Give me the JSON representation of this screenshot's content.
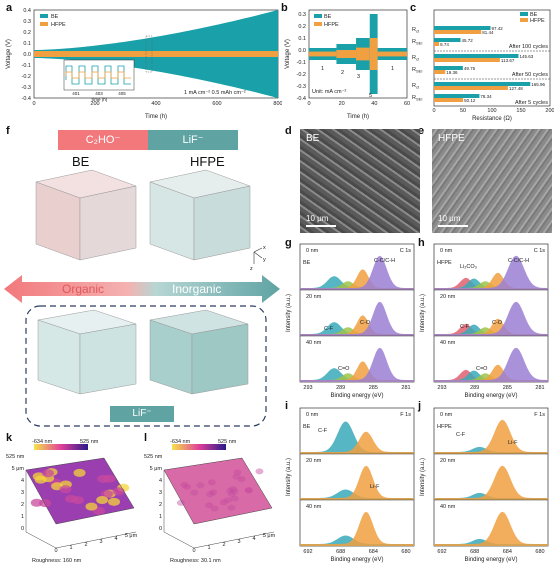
{
  "panel_labels": {
    "a": "a",
    "b": "b",
    "c": "c",
    "d": "d",
    "e": "e",
    "f": "f",
    "g": "g",
    "h": "h",
    "i": "i",
    "j": "j",
    "k": "k",
    "l": "l"
  },
  "colors": {
    "BE": "#19a0a8",
    "HFPE": "#f0a040",
    "organic": "#f2787c",
    "inorganic": "#5fa3a3",
    "grey": "#888888"
  },
  "panel_a": {
    "legend": [
      "BE",
      "HFPE"
    ],
    "ylabel": "Voltage (V)",
    "xlabel": "Time (h)",
    "yticks": [
      "0.4",
      "0.3",
      "0.2",
      "0.1",
      "0.0",
      "-0.1",
      "-0.2",
      "-0.3",
      "-0.4"
    ],
    "xticks": [
      "0",
      "200",
      "400",
      "600",
      "800"
    ],
    "inset_xticks": [
      "401",
      "403",
      "405"
    ],
    "inset_xlabel": "Time (h)",
    "note": "1 mA cm⁻²  0.5 mAh cm⁻²"
  },
  "panel_b": {
    "legend": [
      "BE",
      "HFPE"
    ],
    "ylabel": "Voltage (V)",
    "xlabel": "Time (h)",
    "yticks": [
      "0.3",
      "0.2",
      "0.1",
      "0.0",
      "-0.1",
      "-0.2",
      "-0.3",
      "-0.4"
    ],
    "xticks": [
      "0",
      "20",
      "40",
      "60"
    ],
    "steps": [
      "1",
      "2",
      "3",
      "5",
      "1"
    ],
    "unit_note": "Unit: mA cm⁻²"
  },
  "panel_c": {
    "legend": [
      "BE",
      "HFPE"
    ],
    "xlabel": "Resistance (Ω)",
    "xticks": [
      "0",
      "50",
      "100",
      "150",
      "200"
    ],
    "groups": [
      {
        "label": "After 100 cycles",
        "rows": [
          {
            "name": "R_ct",
            "BE": 97.42,
            "HFPE": 81.44
          },
          {
            "name": "R_SEI",
            "BE": 45.72,
            "HFPE": 8.74
          }
        ]
      },
      {
        "label": "After 50 cycles",
        "rows": [
          {
            "name": "R_ct",
            "BE": 145.63,
            "HFPE": 113.67
          },
          {
            "name": "R_SEI",
            "BE": 49.75,
            "HFPE": 19.36
          }
        ]
      },
      {
        "label": "After 5 cycles",
        "rows": [
          {
            "name": "R_ct",
            "BE": 165.96,
            "HFPE": 127.48
          },
          {
            "name": "R_SEI",
            "BE": 78.34,
            "HFPE": 50.12
          }
        ]
      }
    ]
  },
  "panel_d": {
    "name": "BE",
    "scale": "10 μm"
  },
  "panel_e": {
    "name": "HFPE",
    "scale": "10 μm"
  },
  "panel_f": {
    "top_left": "C₂HO⁻",
    "top_right": "LiF⁻",
    "cube_left": "BE",
    "cube_right": "HFPE",
    "organic": "Organic",
    "inorganic": "Inorganic",
    "bottom": "LiF⁻",
    "axes": [
      "x",
      "y",
      "z"
    ]
  },
  "panel_g": {
    "title": "C 1s",
    "sample": "BE",
    "depths": [
      "0 nm",
      "20 nm",
      "40 nm"
    ],
    "ylabel": "Intensity (a.u.)",
    "xlabel": "Binding energy (eV)",
    "xticks": [
      "293",
      "289",
      "285",
      "281"
    ],
    "peaks": [
      "C-C/C-H",
      "C-F",
      "C-O",
      "C=O"
    ]
  },
  "panel_h": {
    "title": "C 1s",
    "sample": "HFPE",
    "depths": [
      "0 nm",
      "20 nm",
      "40 nm"
    ],
    "ylabel": "Intensity (a.u.)",
    "xlabel": "Binding energy (eV)",
    "xticks": [
      "293",
      "289",
      "285",
      "281"
    ],
    "peaks": [
      "C-C/C-H",
      "Li₂CO₃",
      "C-F",
      "C-O",
      "C=O"
    ]
  },
  "panel_i": {
    "title": "F 1s",
    "sample": "BE",
    "depths": [
      "0 nm",
      "20 nm",
      "40 nm"
    ],
    "ylabel": "Intensity (a.u.)",
    "xlabel": "Binding energy (eV)",
    "xticks": [
      "692",
      "688",
      "684",
      "680"
    ],
    "peaks": [
      "C-F",
      "Li-F"
    ]
  },
  "panel_j": {
    "title": "F 1s",
    "sample": "HFPE",
    "depths": [
      "0 nm",
      "20 nm",
      "40 nm"
    ],
    "ylabel": "Intensity (a.u.)",
    "xlabel": "Binding energy (eV)",
    "xticks": [
      "692",
      "688",
      "684",
      "680"
    ],
    "peaks": [
      "C-F",
      "Li-F"
    ]
  },
  "panel_k": {
    "min": "-634 nm",
    "max": "525 nm",
    "zlabel": "525 nm",
    "roughness": "Roughness:   160 nm",
    "yticks": [
      "5 μm",
      "4",
      "3",
      "2",
      "1",
      "0"
    ],
    "xticks": [
      "0",
      "1",
      "2",
      "3",
      "4",
      "5 μm"
    ]
  },
  "panel_l": {
    "min": "-634 nm",
    "max": "525 nm",
    "zlabel": "525 nm",
    "roughness": "Roughness:  30.1 nm",
    "yticks": [
      "5 μm",
      "4",
      "3",
      "2",
      "1",
      "0"
    ],
    "xticks": [
      "0",
      "1",
      "2",
      "3",
      "4",
      "5 μm"
    ]
  }
}
